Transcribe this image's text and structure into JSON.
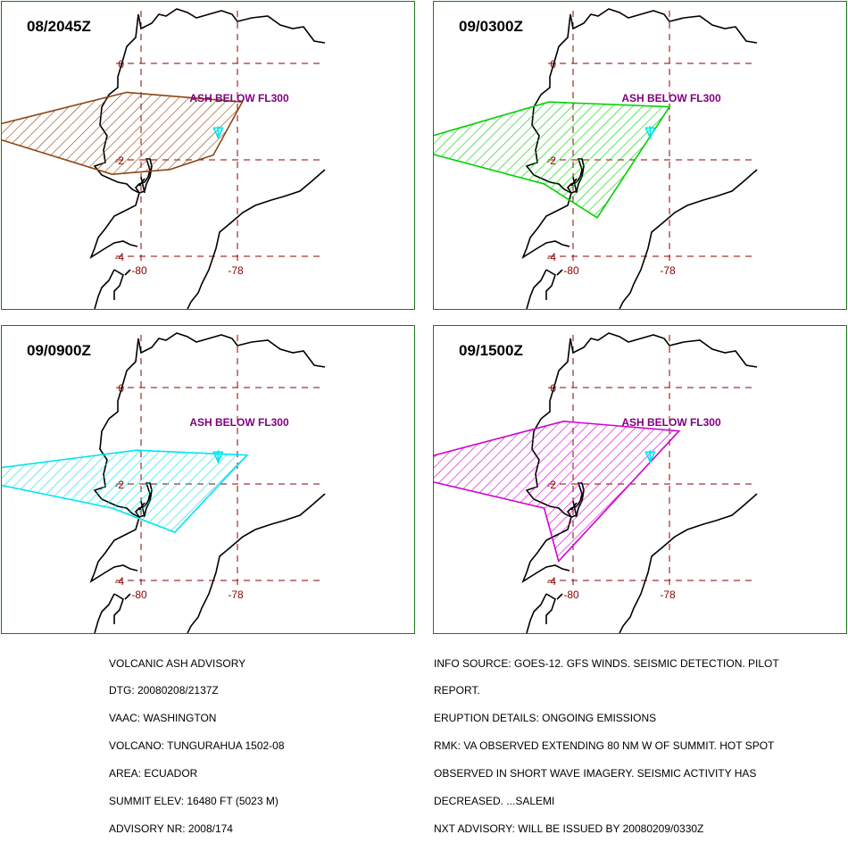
{
  "panels": [
    {
      "time": "08/2045Z",
      "label": "ASH BELOW FL300",
      "color": "#8b4513",
      "polygon": [
        [
          -83.5,
          -1.4
        ],
        [
          -80.3,
          -0.6
        ],
        [
          -77.9,
          -0.8
        ],
        [
          -78.5,
          -1.9
        ],
        [
          -79.4,
          -2.2
        ],
        [
          -80.6,
          -2.3
        ]
      ]
    },
    {
      "time": "09/0300Z",
      "label": "ASH BELOW FL300",
      "color": "#00d000",
      "polygon": [
        [
          -83.6,
          -1.7
        ],
        [
          -80.5,
          -0.8
        ],
        [
          -78.0,
          -0.9
        ],
        [
          -79.5,
          -3.2
        ],
        [
          -80.6,
          -2.5
        ]
      ]
    },
    {
      "time": "09/0900Z",
      "label": "ASH BELOW FL300",
      "color": "#00e5ee",
      "polygon": [
        [
          -84.0,
          -1.8
        ],
        [
          -80.1,
          -1.3
        ],
        [
          -77.8,
          -1.4
        ],
        [
          -79.3,
          -3.0
        ],
        [
          -80.6,
          -2.5
        ]
      ]
    },
    {
      "time": "09/1500Z",
      "label": "ASH BELOW FL300",
      "color": "#d000d0",
      "polygon": [
        [
          -84.0,
          -1.7
        ],
        [
          -80.2,
          -0.7
        ],
        [
          -77.8,
          -0.9
        ],
        [
          -80.3,
          -3.6
        ],
        [
          -80.6,
          -2.5
        ]
      ]
    }
  ],
  "axis_labels": {
    "lat": [
      "0",
      "-2",
      "-4"
    ],
    "lon": [
      "-80",
      "-78"
    ]
  },
  "advisory_left": [
    "VOLCANIC ASH ADVISORY",
    "DTG: 20080208/2137Z",
    "VAAC: WASHINGTON",
    "VOLCANO: TUNGURAHUA 1502-08",
    "AREA: ECUADOR",
    "SUMMIT ELEV: 16480 FT (5023 M)",
    "ADVISORY NR: 2008/174"
  ],
  "advisory_right": [
    "INFO SOURCE: GOES-12. GFS WINDS. SEISMIC DETECTION. PILOT",
    "REPORT.",
    "ERUPTION DETAILS: ONGOING EMISSIONS",
    "RMK: VA OBSERVED EXTENDING 80 NM W OF SUMMIT. HOT SPOT",
    "OBSERVED IN SHORT WAVE IMAGERY. SEISMIC ACTIVITY HAS",
    "DECREASED. ...SALEMI",
    "NXT ADVISORY: WILL BE ISSUED BY 20080209/0330Z"
  ],
  "volcano_marker": {
    "name": "volcano-triangle",
    "color": "#00e5ee",
    "lon": -78.4,
    "lat": -1.45
  }
}
